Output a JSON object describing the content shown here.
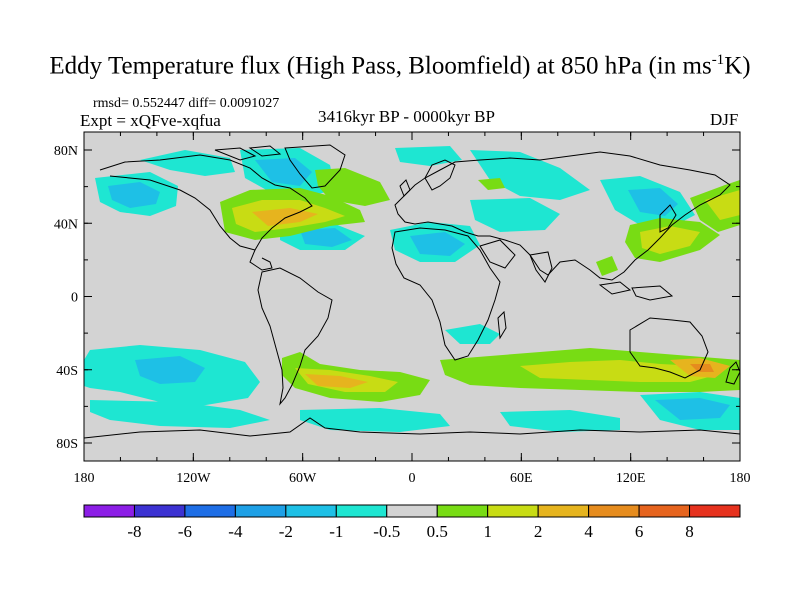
{
  "title": {
    "main": "Eddy Temperature flux (High Pass, Bloomfield) at 850 hPa (in ms",
    "sup": "-1",
    "tail": "K)"
  },
  "meta": {
    "stats": "rmsd= 0.552447 diff= 0.0091027",
    "expt": "Expt = xQFve-xqfua",
    "period": "3416kyr BP - 0000kyr BP",
    "season": "DJF"
  },
  "map": {
    "lat_ticks": [
      "80N",
      "40N",
      "0",
      "40S",
      "80S"
    ],
    "lon_ticks": [
      "180",
      "120W",
      "60W",
      "0",
      "60E",
      "120E",
      "180"
    ],
    "background_color": "#d3d3d3"
  },
  "colorbar": {
    "colors": [
      "#8c1ee6",
      "#3c32d2",
      "#1e6ee6",
      "#1ea0e6",
      "#1ec0e6",
      "#1ee6d2",
      "#d3d3d3",
      "#78dc14",
      "#c8dc14",
      "#e6b41e",
      "#e68c1e",
      "#e6641e",
      "#e6321e"
    ],
    "labels": [
      "-8",
      "-6",
      "-4",
      "-2",
      "-1",
      "-0.5",
      "0.5",
      "1",
      "2",
      "4",
      "6",
      "8"
    ]
  }
}
